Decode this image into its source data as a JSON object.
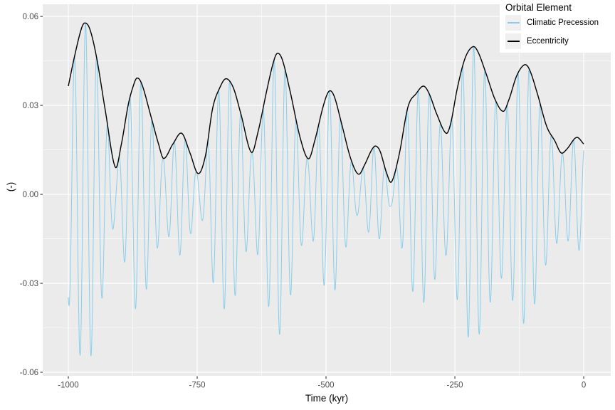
{
  "chart_data": {
    "type": "line",
    "title": "",
    "xlabel": "Time (kyr)",
    "ylabel": "(-)",
    "xlim": [
      -1049.7,
      52.4
    ],
    "ylim": [
      -0.0612,
      0.0641
    ],
    "grid": true,
    "x_ticks": {
      "values": [
        -1000,
        -750,
        -500,
        -250,
        0
      ],
      "labels": [
        "-1000",
        "-750",
        "-500",
        "-250",
        "0"
      ],
      "minor": [
        -875,
        -625,
        -375,
        -125
      ]
    },
    "y_ticks": {
      "values": [
        0.06,
        0.03,
        0,
        -0.03,
        -0.06
      ],
      "labels": [
        "0.06",
        "0.03",
        "0.00",
        "-0.03",
        "-0.06"
      ],
      "minor": [
        0.045,
        0.015,
        -0.015,
        -0.045
      ]
    },
    "legend": {
      "title": "Orbital Element",
      "position": "top-right",
      "entries": [
        {
          "label": "Climatic Precession",
          "color": "#87CEEB"
        },
        {
          "label": "Eccentricity",
          "color": "#000000"
        }
      ]
    },
    "series": [
      {
        "name": "Climatic Precession",
        "color": "#87CEEB",
        "width": 1,
        "model": "envelope_times_cosine",
        "period_kyr": 21.52,
        "trough_at_kyr": -9,
        "sample_step_kyr": 0.2
      },
      {
        "name": "Eccentricity",
        "color": "#000000",
        "width": 1.4,
        "points": [
          [
            -1000,
            0.0365
          ],
          [
            -988,
            0.0465
          ],
          [
            -975,
            0.0557
          ],
          [
            -968,
            0.0578
          ],
          [
            -958,
            0.0556
          ],
          [
            -945,
            0.046
          ],
          [
            -928,
            0.028
          ],
          [
            -909,
            0.0092
          ],
          [
            -897,
            0.017
          ],
          [
            -884,
            0.03
          ],
          [
            -875,
            0.036
          ],
          [
            -867,
            0.0392
          ],
          [
            -857,
            0.037
          ],
          [
            -840,
            0.0265
          ],
          [
            -825,
            0.017
          ],
          [
            -815,
            0.0121
          ],
          [
            -797,
            0.017
          ],
          [
            -780,
            0.0206
          ],
          [
            -764,
            0.014
          ],
          [
            -748,
            0.007
          ],
          [
            -734,
            0.013
          ],
          [
            -720,
            0.029
          ],
          [
            -706,
            0.036
          ],
          [
            -694,
            0.039
          ],
          [
            -680,
            0.036
          ],
          [
            -665,
            0.027
          ],
          [
            -645,
            0.0142
          ],
          [
            -632,
            0.021
          ],
          [
            -615,
            0.035
          ],
          [
            -603,
            0.044
          ],
          [
            -595,
            0.0475
          ],
          [
            -585,
            0.0455
          ],
          [
            -570,
            0.035
          ],
          [
            -550,
            0.019
          ],
          [
            -534,
            0.012
          ],
          [
            -522,
            0.018
          ],
          [
            -505,
            0.03
          ],
          [
            -494,
            0.0348
          ],
          [
            -484,
            0.033
          ],
          [
            -470,
            0.024
          ],
          [
            -452,
            0.012
          ],
          [
            -437,
            0.0068
          ],
          [
            -425,
            0.01
          ],
          [
            -412,
            0.0148
          ],
          [
            -404,
            0.0163
          ],
          [
            -395,
            0.0145
          ],
          [
            -383,
            0.0075
          ],
          [
            -373,
            0.0042
          ],
          [
            -358,
            0.0135
          ],
          [
            -341,
            0.0295
          ],
          [
            -325,
            0.034
          ],
          [
            -311,
            0.0365
          ],
          [
            -300,
            0.034
          ],
          [
            -285,
            0.027
          ],
          [
            -267,
            0.0206
          ],
          [
            -258,
            0.024
          ],
          [
            -245,
            0.036
          ],
          [
            -230,
            0.046
          ],
          [
            -215,
            0.0498
          ],
          [
            -205,
            0.048
          ],
          [
            -190,
            0.041
          ],
          [
            -172,
            0.032
          ],
          [
            -156,
            0.028
          ],
          [
            -145,
            0.032
          ],
          [
            -130,
            0.04
          ],
          [
            -115,
            0.0437
          ],
          [
            -105,
            0.042
          ],
          [
            -90,
            0.034
          ],
          [
            -72,
            0.023
          ],
          [
            -56,
            0.018
          ],
          [
            -44,
            0.014
          ],
          [
            -33,
            0.0152
          ],
          [
            -14,
            0.0192
          ],
          [
            0,
            0.017
          ]
        ]
      }
    ],
    "theme": {
      "panel_bg": "#EBEBEB",
      "grid": "#FFFFFF",
      "axis_text": "#4D4D4D",
      "tick": "#333333",
      "plot_bg": "#FFFFFF",
      "legend_key_bg": "#F0F0F0"
    }
  }
}
